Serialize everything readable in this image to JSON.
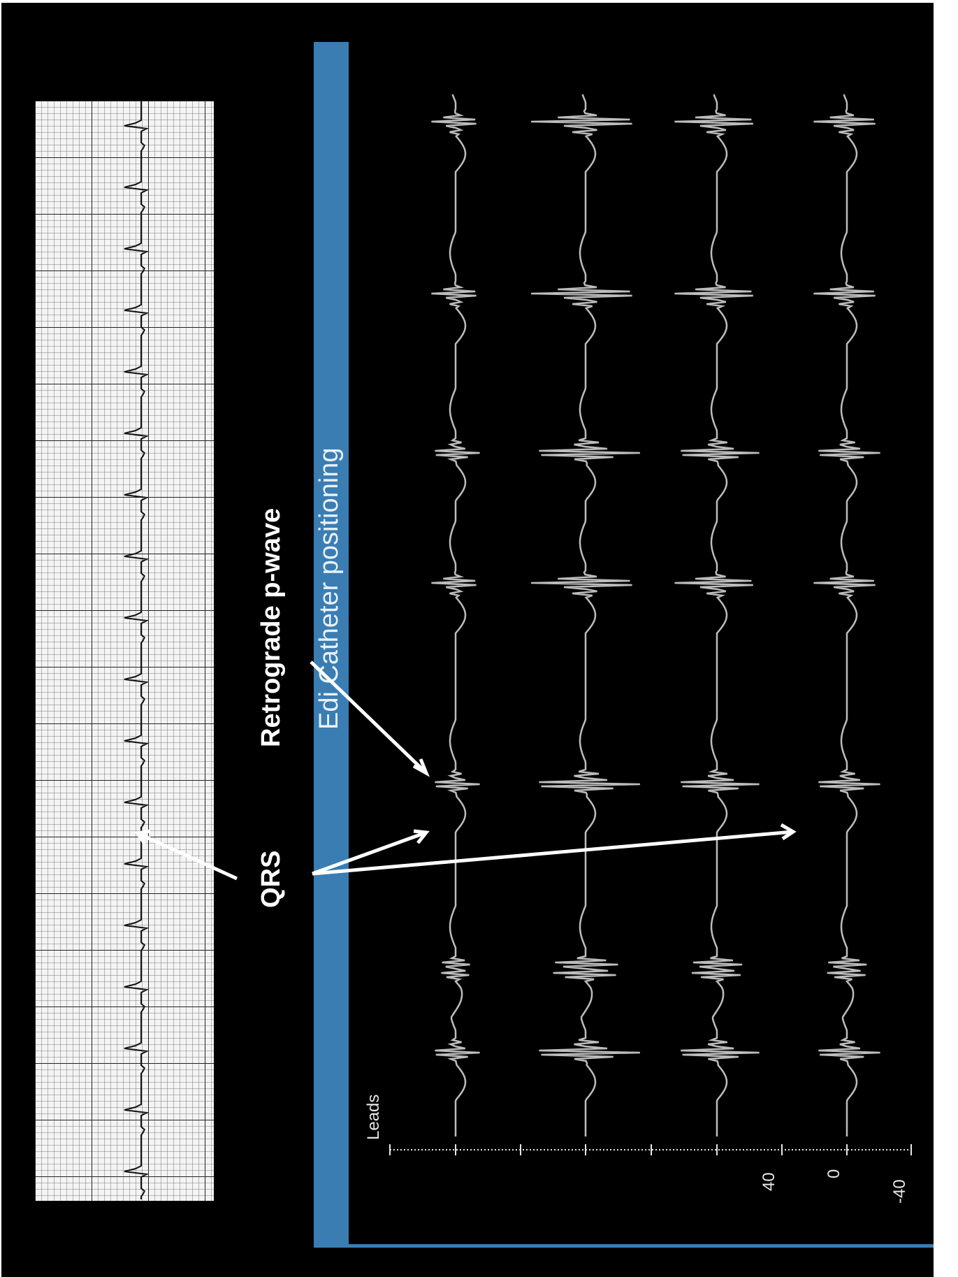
{
  "title": "Edi Catheter positioning",
  "annotations": {
    "retrograde_p_wave": "Retrograde p-wave",
    "qrs": "QRS"
  },
  "leads_panel": {
    "label": "Leads",
    "scale_labels": [
      "40",
      "0",
      "-40"
    ],
    "lead_count": 4
  },
  "colors": {
    "background": "#000000",
    "bar": "#3a7db3",
    "trace": "#bdbdbd",
    "arrow": "#ffffff"
  }
}
